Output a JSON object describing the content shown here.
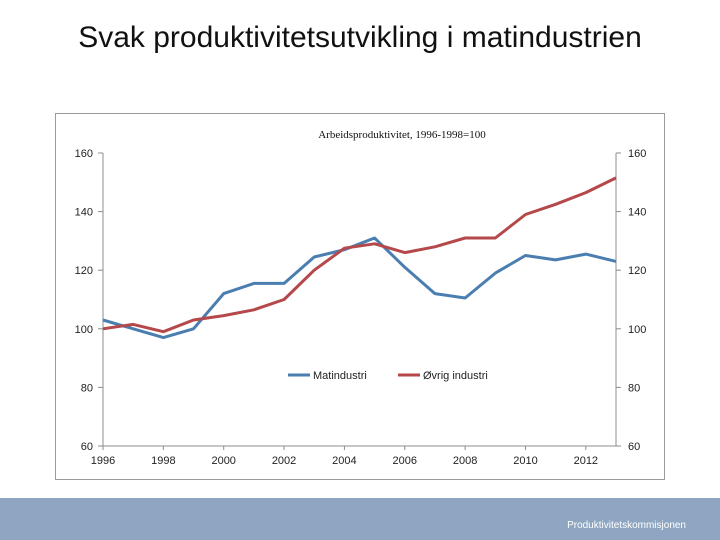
{
  "slide": {
    "title": "Svak produktivitetsutvikling i matindustrien",
    "footer": "Produktivitetskommisjonen"
  },
  "colors": {
    "matindustri": "#4a7eb0",
    "ovrig": "#b5484a",
    "footer_bar": "#8ea6c1"
  },
  "chart_data": {
    "type": "line",
    "title": "Arbeidsproduktivitet, 1996-1998=100",
    "xlim": [
      1996,
      2013
    ],
    "ylim": [
      60,
      160
    ],
    "xticks": [
      1996,
      1998,
      2000,
      2002,
      2004,
      2006,
      2008,
      2010,
      2012
    ],
    "yticks": [
      60,
      80,
      100,
      120,
      140,
      160
    ],
    "grid": false,
    "legend_position": "center",
    "x": [
      1996,
      1997,
      1998,
      1999,
      2000,
      2001,
      2002,
      2003,
      2004,
      2005,
      2006,
      2007,
      2008,
      2009,
      2010,
      2011,
      2012,
      2013
    ],
    "series": [
      {
        "name": "Matindustri",
        "color": "#4a7eb0",
        "values": [
          103,
          100,
          97,
          100,
          112,
          115.5,
          115.5,
          124.5,
          127,
          131,
          121,
          112,
          110.5,
          119,
          125,
          123.5,
          125.5,
          123
        ]
      },
      {
        "name": "Øvrig industri",
        "color": "#b5484a",
        "values": [
          100,
          101.5,
          99,
          103,
          104.5,
          106.5,
          110,
          120,
          127.5,
          129,
          126,
          128,
          131,
          131,
          139,
          142.5,
          146.5,
          151.5
        ]
      }
    ]
  }
}
